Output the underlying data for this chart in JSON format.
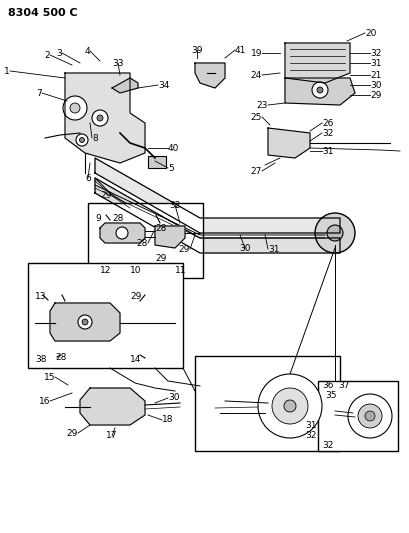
{
  "title": "8304 500 C",
  "bg_color": "#ffffff",
  "title_fontsize": 8,
  "label_fontsize": 6.5,
  "fig_width": 4.1,
  "fig_height": 5.33,
  "dpi": 100
}
